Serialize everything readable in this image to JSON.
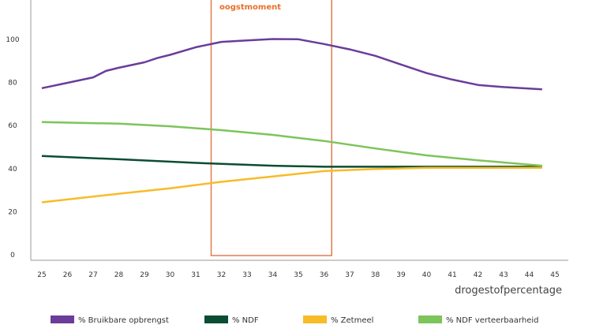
{
  "chart_data": {
    "type": "line",
    "annotation": "oogstmoment",
    "xlabel": "drogestofpercentage",
    "ylabel": "",
    "xlim": [
      25,
      45
    ],
    "ylim": [
      0,
      100
    ],
    "x_ticks": [
      25,
      26,
      27,
      28,
      29,
      30,
      31,
      32,
      33,
      34,
      35,
      36,
      37,
      38,
      39,
      40,
      41,
      42,
      43,
      44,
      45
    ],
    "y_ticks": [
      0,
      20,
      40,
      60,
      80,
      100
    ],
    "highlight_range_x": [
      31.6,
      36.3
    ],
    "grid": false,
    "legend_position": "bottom",
    "series": [
      {
        "name": "% Bruikbare opbrengst",
        "color": "#6a3d9a",
        "x": [
          25,
          26,
          27,
          27.5,
          28,
          29,
          29.5,
          30,
          31,
          32,
          33,
          34,
          35,
          36,
          37,
          38,
          39,
          40,
          41,
          42,
          43,
          44.5
        ],
        "y": [
          77,
          79.5,
          82,
          85,
          86.5,
          89,
          91,
          92.5,
          96,
          98.5,
          99.2,
          99.8,
          99.7,
          97.5,
          95,
          92,
          88,
          84,
          81,
          78.5,
          77.5,
          76.5
        ]
      },
      {
        "name": "% NDF",
        "color": "#0b4d32",
        "x": [
          25,
          28,
          31,
          34,
          36,
          40,
          44.5
        ],
        "y": [
          45.5,
          44,
          42.3,
          41,
          40.5,
          40.5,
          40.5
        ]
      },
      {
        "name": "% Zetmeel",
        "color": "#f7bc28",
        "x": [
          25,
          28,
          30,
          32,
          34,
          36,
          38,
          40,
          44.5
        ],
        "y": [
          24,
          28,
          30.5,
          33.5,
          36,
          38.5,
          39.5,
          40,
          40
        ]
      },
      {
        "name": "% NDF verteerbaarheid",
        "color": "#7dc45a",
        "x": [
          25,
          28,
          30,
          32,
          34,
          36,
          38,
          40,
          42,
          44.5
        ],
        "y": [
          61.3,
          60.5,
          59.3,
          57.5,
          55.3,
          52.5,
          49,
          45.8,
          43.5,
          41
        ]
      }
    ],
    "highlight_color": "#e07b4f"
  }
}
